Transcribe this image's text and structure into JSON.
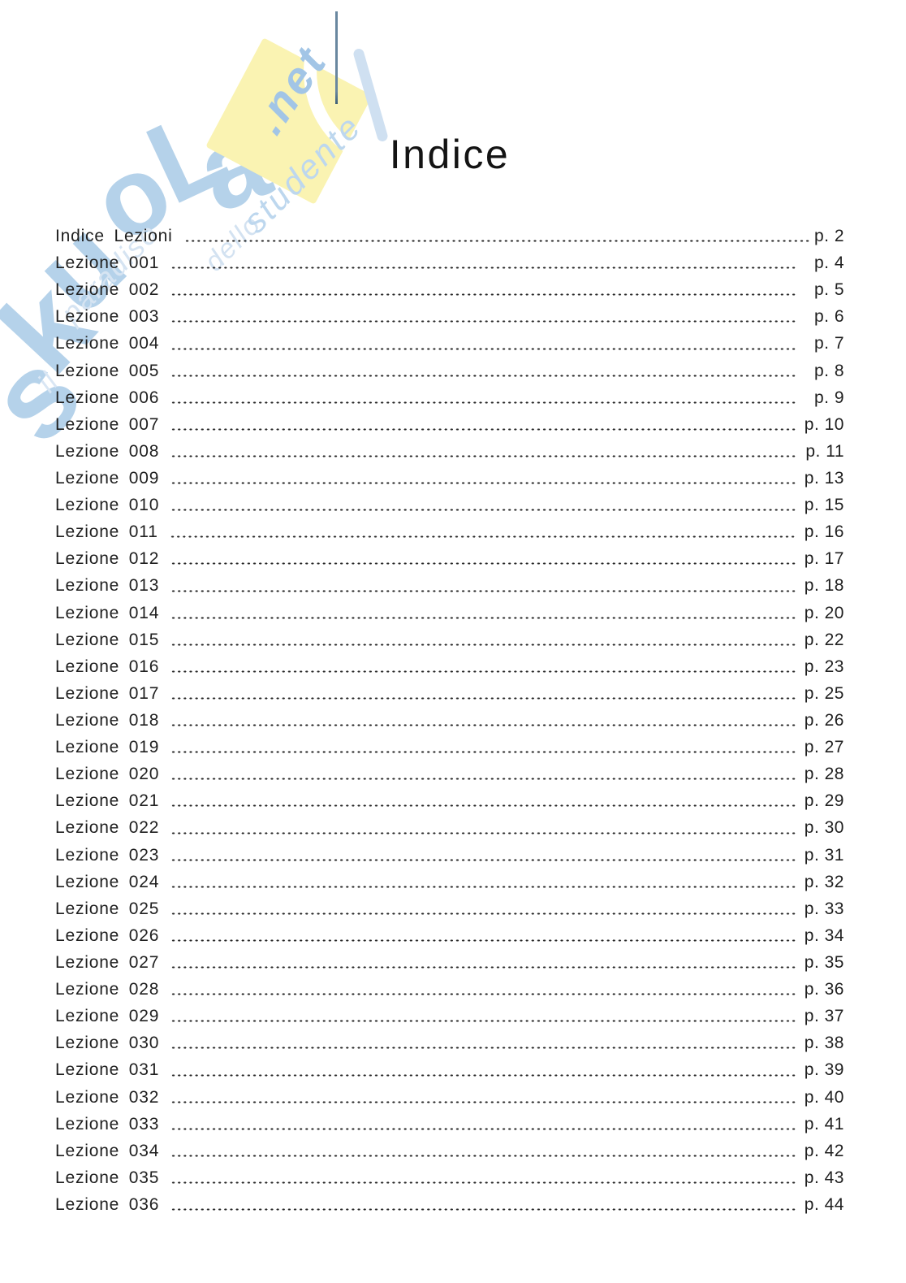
{
  "page": {
    "title": "Indice"
  },
  "watermark": {
    "brand": "skuoLa",
    "net": ".net",
    "tagline": {
      "il": "il",
      "paradiso": "paradiso",
      "dello": "dello",
      "studente": "studente"
    }
  },
  "colors": {
    "text": "#1f1f1f",
    "watermark_blue": "#b5d2ea",
    "watermark_blue_light": "#cfe0f1",
    "watermark_yellow": "#faf3b2",
    "caret_line_blue": "#5e819b"
  },
  "toc": {
    "entries": [
      {
        "label": "Indice Lezioni",
        "page": "p. 2"
      },
      {
        "label": "Lezione 001",
        "page": "p. 4"
      },
      {
        "label": "Lezione 002",
        "page": "p. 5"
      },
      {
        "label": "Lezione 003",
        "page": "p. 6"
      },
      {
        "label": "Lezione 004",
        "page": "p. 7"
      },
      {
        "label": "Lezione 005",
        "page": "p. 8"
      },
      {
        "label": "Lezione 006",
        "page": "p. 9"
      },
      {
        "label": "Lezione 007",
        "page": "p. 10"
      },
      {
        "label": "Lezione 008",
        "page": "p. 11"
      },
      {
        "label": "Lezione 009",
        "page": "p. 13"
      },
      {
        "label": "Lezione 010",
        "page": "p. 15"
      },
      {
        "label": "Lezione 011",
        "page": "p. 16"
      },
      {
        "label": "Lezione 012",
        "page": "p. 17"
      },
      {
        "label": "Lezione 013",
        "page": "p. 18"
      },
      {
        "label": "Lezione 014",
        "page": "p. 20"
      },
      {
        "label": "Lezione 015",
        "page": "p. 22"
      },
      {
        "label": "Lezione 016",
        "page": "p. 23"
      },
      {
        "label": "Lezione 017",
        "page": "p. 25"
      },
      {
        "label": "Lezione 018",
        "page": "p. 26"
      },
      {
        "label": "Lezione 019",
        "page": "p. 27"
      },
      {
        "label": "Lezione 020",
        "page": "p. 28"
      },
      {
        "label": "Lezione 021",
        "page": "p. 29"
      },
      {
        "label": "Lezione 022",
        "page": "p. 30"
      },
      {
        "label": "Lezione 023",
        "page": "p. 31"
      },
      {
        "label": "Lezione 024",
        "page": "p. 32"
      },
      {
        "label": "Lezione 025",
        "page": "p. 33"
      },
      {
        "label": "Lezione 026",
        "page": "p. 34"
      },
      {
        "label": "Lezione 027",
        "page": "p. 35"
      },
      {
        "label": "Lezione 028",
        "page": "p. 36"
      },
      {
        "label": "Lezione 029",
        "page": "p. 37"
      },
      {
        "label": "Lezione 030",
        "page": "p. 38"
      },
      {
        "label": "Lezione 031",
        "page": "p. 39"
      },
      {
        "label": "Lezione 032",
        "page": "p. 40"
      },
      {
        "label": "Lezione 033",
        "page": "p. 41"
      },
      {
        "label": "Lezione 034",
        "page": "p. 42"
      },
      {
        "label": "Lezione 035",
        "page": "p. 43"
      },
      {
        "label": "Lezione 036",
        "page": "p. 44"
      }
    ]
  }
}
